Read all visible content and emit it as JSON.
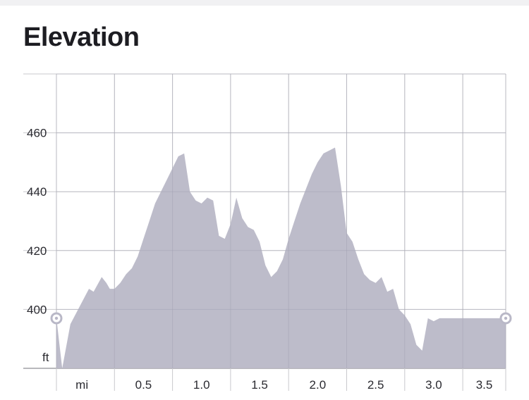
{
  "header": {
    "title": "Elevation"
  },
  "chart_data": {
    "type": "area",
    "title": "Elevation",
    "y_unit": "ft",
    "x_unit": "mi",
    "xlim": [
      0,
      3.87
    ],
    "ylim": [
      380,
      480
    ],
    "y_ticks": [
      400,
      420,
      440,
      460
    ],
    "y_tick_labels": [
      "400",
      "420",
      "440",
      "460"
    ],
    "x_ticks": [
      0.5,
      1.0,
      1.5,
      2.0,
      2.5,
      3.0,
      3.5
    ],
    "x_tick_labels": [
      "0.5",
      "1.0",
      "1.5",
      "2.0",
      "2.5",
      "3.0",
      "3.5"
    ],
    "grid": true,
    "colors": {
      "fill": "#b9b8c7",
      "grid": "#c9c9cd",
      "marker": "#ffffff",
      "marker_stroke": "#b9b8c7"
    },
    "series": [
      {
        "x": [
          0.0,
          0.05,
          0.12,
          0.2,
          0.28,
          0.32,
          0.39,
          0.43,
          0.46,
          0.5,
          0.55,
          0.6,
          0.65,
          0.7,
          0.75,
          0.8,
          0.85,
          0.9,
          0.95,
          1.0,
          1.05,
          1.1,
          1.15,
          1.2,
          1.25,
          1.3,
          1.35,
          1.4,
          1.45,
          1.5,
          1.55,
          1.6,
          1.65,
          1.7,
          1.75,
          1.8,
          1.85,
          1.9,
          1.95,
          2.0,
          2.05,
          2.1,
          2.15,
          2.2,
          2.25,
          2.3,
          2.35,
          2.4,
          2.45,
          2.5,
          2.55,
          2.6,
          2.65,
          2.7,
          2.75,
          2.8,
          2.85,
          2.9,
          2.95,
          3.0,
          3.05,
          3.1,
          3.15,
          3.2,
          3.25,
          3.3,
          3.35,
          3.4,
          3.45,
          3.5,
          3.55,
          3.6,
          3.65,
          3.7,
          3.75,
          3.8,
          3.87
        ],
        "y": [
          397,
          380,
          395,
          401,
          407,
          406,
          411,
          409,
          407,
          407,
          409,
          412,
          414,
          418,
          424,
          430,
          436,
          440,
          444,
          448,
          452,
          453,
          440,
          437,
          436,
          438,
          437,
          425,
          424,
          429,
          438,
          431,
          428,
          427,
          423,
          415,
          411,
          413,
          417,
          424,
          430,
          436,
          441,
          446,
          450,
          453,
          454,
          455,
          442,
          426,
          423,
          417,
          412,
          410,
          409,
          411,
          406,
          407,
          400,
          398,
          395,
          388,
          386,
          397,
          396,
          397,
          397,
          397,
          397,
          397,
          397,
          397,
          397,
          397,
          397,
          397,
          397
        ]
      }
    ]
  }
}
